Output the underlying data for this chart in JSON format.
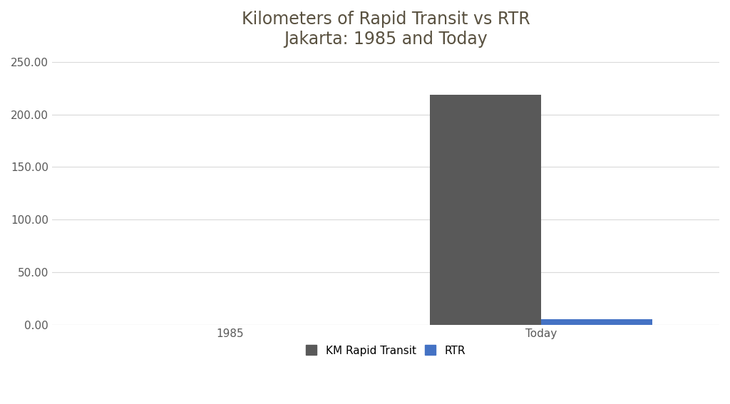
{
  "title_line1": "Kilometers of Rapid Transit vs RTR",
  "title_line2": "Jakarta: 1985 and Today",
  "categories": [
    "1985",
    "Today"
  ],
  "km_rapid_transit": [
    0,
    219
  ],
  "rtr": [
    0,
    5.54
  ],
  "bar_color_km": "#595959",
  "bar_color_rtr": "#4472c4",
  "background_color": "#ffffff",
  "ylim": [
    0,
    250
  ],
  "yticks": [
    0,
    50,
    100,
    150,
    200,
    250
  ],
  "ytick_labels": [
    "0.00",
    "50.00",
    "100.00",
    "150.00",
    "200.00",
    "250.00"
  ],
  "grid_color": "#d9d9d9",
  "title_color": "#595140",
  "title_fontsize": 17,
  "tick_fontsize": 11,
  "tick_color": "#595959",
  "legend_fontsize": 11,
  "bar_width": 0.25,
  "legend_label_km": "KM Rapid Transit",
  "legend_label_rtr": "RTR",
  "x_positions": [
    0.3,
    1.0
  ],
  "figsize": [
    10.24,
    5.67
  ],
  "dpi": 100
}
